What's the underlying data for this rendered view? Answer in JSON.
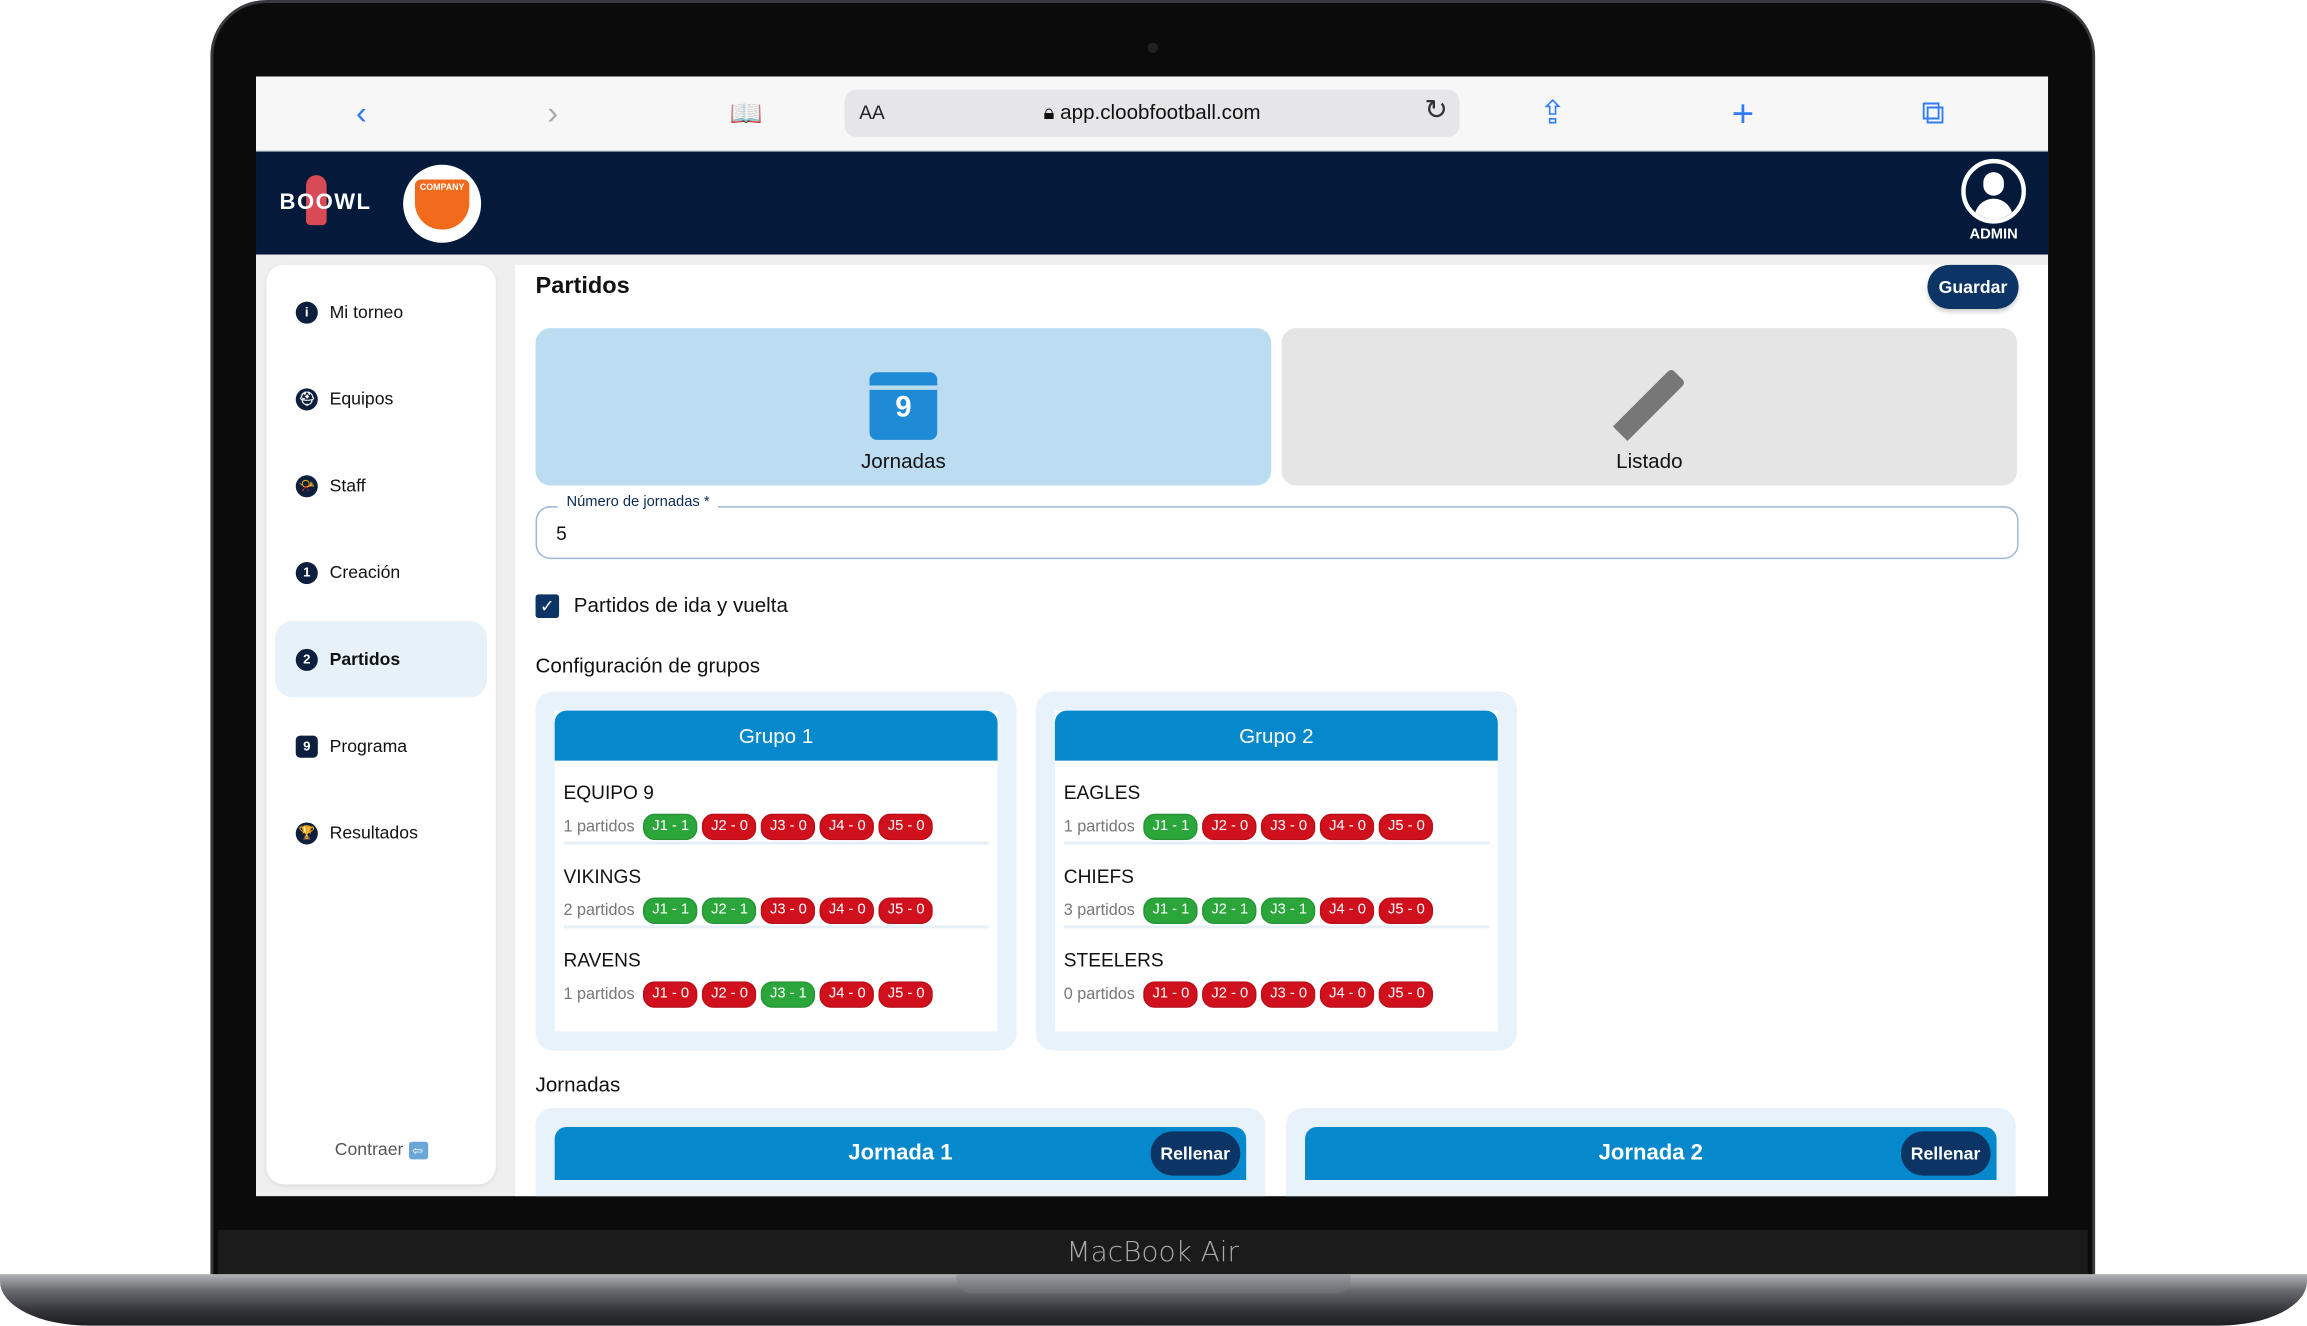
{
  "device": {
    "brand": "MacBook Air"
  },
  "browser": {
    "text_size": "AA",
    "url": "app.cloobfootball.com",
    "icons": [
      "back-icon",
      "forward-icon",
      "bookmarks-icon",
      "lock-icon",
      "reload-icon",
      "share-icon",
      "new-tab-icon",
      "tabs-icon"
    ]
  },
  "header": {
    "logo": "BOOWL",
    "team_logo": "COMPANY",
    "user_label": "ADMIN"
  },
  "sidebar": {
    "items": [
      {
        "label": "Mi torneo",
        "icon": "i"
      },
      {
        "label": "Equipos",
        "icon": "⛑"
      },
      {
        "label": "Staff",
        "icon": "📯"
      },
      {
        "label": "Creación",
        "icon": "1"
      },
      {
        "label": "Partidos",
        "icon": "2",
        "active": true
      },
      {
        "label": "Programa",
        "icon": "9"
      },
      {
        "label": "Resultados",
        "icon": "🏆"
      }
    ],
    "collapse_label": "Contraer"
  },
  "main": {
    "title": "Partidos",
    "save_label": "Guardar",
    "modes": [
      {
        "label": "Jornadas",
        "icon": "calendar-icon",
        "calendar_day": "9",
        "selected": true
      },
      {
        "label": "Listado",
        "icon": "pencil-icon",
        "selected": false
      }
    ],
    "rounds_field": {
      "label": "Número de jornadas *",
      "value": "5"
    },
    "home_away": {
      "label": "Partidos de ida y vuelta",
      "checked": true
    },
    "groups_title": "Configuración de grupos",
    "groups": [
      {
        "name": "Grupo 1",
        "teams": [
          {
            "name": "EQUIPO 9",
            "count": "1 partidos",
            "badges": [
              "J1 - 1",
              "J2 - 0",
              "J3 - 0",
              "J4 - 0",
              "J5 - 0"
            ]
          },
          {
            "name": "VIKINGS",
            "count": "2 partidos",
            "badges": [
              "J1 - 1",
              "J2 - 1",
              "J3 - 0",
              "J4 - 0",
              "J5 - 0"
            ]
          },
          {
            "name": "RAVENS",
            "count": "1 partidos",
            "badges": [
              "J1 - 0",
              "J2 - 0",
              "J3 - 1",
              "J4 - 0",
              "J5 - 0"
            ]
          }
        ]
      },
      {
        "name": "Grupo 2",
        "teams": [
          {
            "name": "EAGLES",
            "count": "1 partidos",
            "badges": [
              "J1 - 1",
              "J2 - 0",
              "J3 - 0",
              "J4 - 0",
              "J5 - 0"
            ]
          },
          {
            "name": "CHIEFS",
            "count": "3 partidos",
            "badges": [
              "J1 - 1",
              "J2 - 1",
              "J3 - 1",
              "J4 - 0",
              "J5 - 0"
            ]
          },
          {
            "name": "STEELERS",
            "count": "0 partidos",
            "badges": [
              "J1 - 0",
              "J2 - 0",
              "J3 - 0",
              "J4 - 0",
              "J5 - 0"
            ]
          }
        ]
      }
    ],
    "rounds_title": "Jornadas",
    "rounds": [
      {
        "name": "Jornada 1",
        "fill_label": "Rellenar"
      },
      {
        "name": "Jornada 2",
        "fill_label": "Rellenar"
      }
    ],
    "colors": {
      "assigned": "#2aa63b",
      "unassigned": "#d0101c",
      "header": "#0688cc",
      "primary": "#0c3566"
    }
  }
}
